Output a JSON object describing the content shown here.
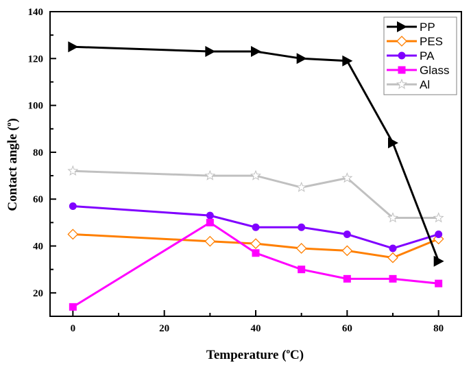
{
  "chart_data": {
    "type": "line",
    "title": "",
    "xlabel": "Temperature (°C)",
    "xlabel_parts": {
      "main": "Temperature (",
      "sup": "o",
      "unit": "C)"
    },
    "ylabel": "Contact angle (°)",
    "ylabel_parts": {
      "main": "Contact angle (",
      "sup": "o",
      "unit": ")"
    },
    "xlim": [
      -5,
      85
    ],
    "ylim": [
      10,
      140
    ],
    "xticks": [
      0,
      20,
      40,
      60,
      80
    ],
    "xminor": [
      10,
      30,
      50,
      70
    ],
    "yticks": [
      20,
      40,
      60,
      80,
      100,
      120,
      140
    ],
    "yminor": [
      30,
      50,
      70,
      90,
      110,
      130
    ],
    "x": [
      0,
      30,
      40,
      50,
      60,
      70,
      80
    ],
    "legend_position": "top-right",
    "grid": false,
    "series": [
      {
        "name": "PP",
        "color": "#000000",
        "marker": "triangle-right",
        "values": [
          125,
          123,
          123,
          120,
          119,
          84,
          33.5
        ]
      },
      {
        "name": "PES",
        "color": "#ff7f00",
        "marker": "diamond-open",
        "values": [
          45,
          42,
          41,
          39,
          38,
          35,
          43
        ]
      },
      {
        "name": "PA",
        "color": "#8000ff",
        "marker": "circle",
        "values": [
          57,
          53,
          48,
          48,
          45,
          39,
          45
        ]
      },
      {
        "name": "Glass",
        "color": "#ff00ff",
        "marker": "square",
        "values": [
          14,
          50,
          37,
          30,
          26,
          26,
          24
        ]
      },
      {
        "name": "Al",
        "color": "#c0c0c0",
        "marker": "star-open",
        "values": [
          72,
          70,
          70,
          65,
          69,
          52,
          52
        ]
      }
    ]
  }
}
